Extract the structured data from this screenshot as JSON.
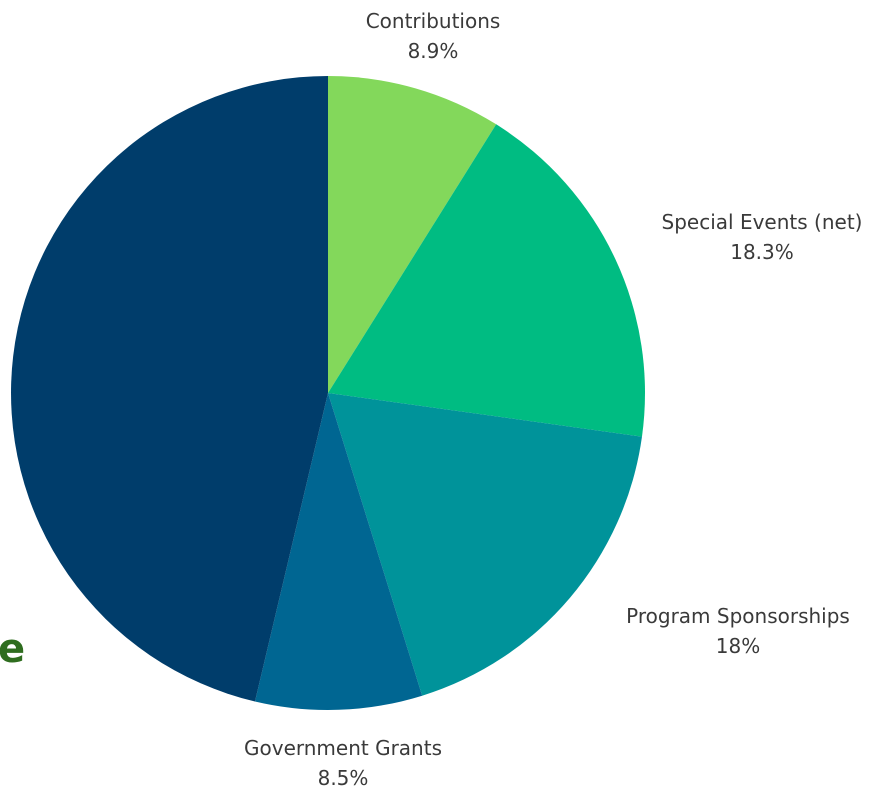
{
  "chart_data": {
    "type": "pie",
    "start_angle_deg": 0,
    "direction": "clockwise",
    "slices": [
      {
        "label": "Contributions",
        "value_label": "8.9%",
        "value": 8.9,
        "color": "#83d85b"
      },
      {
        "label": "Special Events (net)",
        "value_label": "18.3%",
        "value": 18.3,
        "color": "#00bc82"
      },
      {
        "label": "Program Sponsorships",
        "value_label": "18%",
        "value": 18.0,
        "color": "#00939a"
      },
      {
        "label": "Government Grants",
        "value_label": "8.5%",
        "value": 8.5,
        "color": "#006692"
      },
      {
        "label": "",
        "value_label": "",
        "value": 46.3,
        "color": "#003d6b"
      }
    ]
  },
  "cropped_text": "e"
}
